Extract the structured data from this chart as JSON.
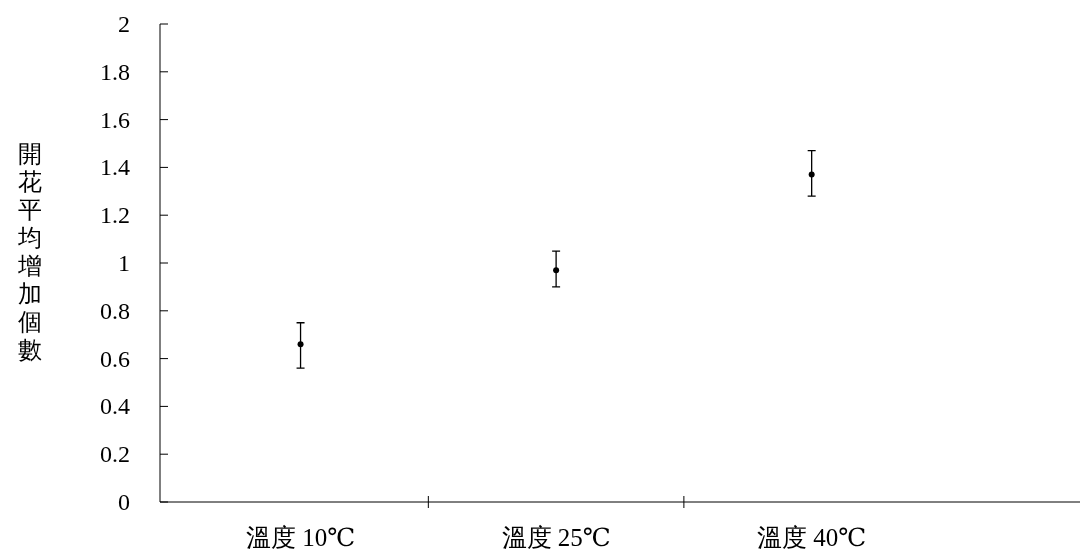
{
  "chart_data": {
    "type": "scatter",
    "ylabel": "開花平均增加個數",
    "categories": [
      "溫度 10℃",
      "溫度 25℃",
      "溫度 40℃"
    ],
    "values": [
      0.66,
      0.97,
      1.37
    ],
    "errors": [
      [
        0.56,
        0.75
      ],
      [
        0.9,
        1.05
      ],
      [
        1.28,
        1.47
      ]
    ],
    "color": "#000000",
    "marker": "circle",
    "ylim": [
      0,
      2
    ],
    "yticks": [
      0,
      0.2,
      0.4,
      0.6,
      0.8,
      1,
      1.2,
      1.4,
      1.6,
      1.8,
      2
    ],
    "grid": false
  }
}
